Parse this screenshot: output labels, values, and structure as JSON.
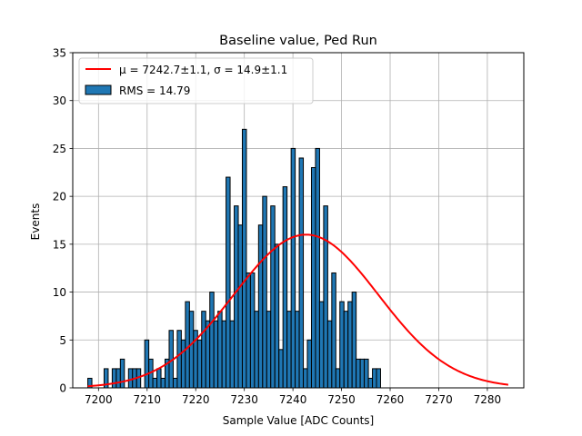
{
  "chart_data": {
    "type": "bar",
    "title": "Baseline value, Ped Run",
    "xlabel": "Sample Value [ADC Counts]",
    "ylabel": "Events",
    "xlim": [
      7194.7,
      7287.5
    ],
    "ylim": [
      0,
      35
    ],
    "xticks": [
      7200,
      7210,
      7220,
      7230,
      7240,
      7250,
      7260,
      7270,
      7280
    ],
    "yticks": [
      0,
      5,
      10,
      15,
      20,
      25,
      30,
      35
    ],
    "grid": true,
    "bin_width": 0.8366,
    "bins_left": [
      7197.8,
      7198.64,
      7199.47,
      7200.31,
      7201.15,
      7201.98,
      7202.82,
      7203.66,
      7204.49,
      7205.33,
      7206.17,
      7207.0,
      7207.84,
      7208.68,
      7209.51,
      7210.35,
      7211.18,
      7212.02,
      7212.86,
      7213.69,
      7214.53,
      7215.37,
      7216.2,
      7217.04,
      7217.88,
      7218.71,
      7219.55,
      7220.39,
      7221.22,
      7222.06,
      7222.9,
      7223.73,
      7224.57,
      7225.41,
      7226.24,
      7227.08,
      7227.92,
      7228.75,
      7229.59,
      7230.42,
      7231.26,
      7232.1,
      7232.93,
      7233.77,
      7234.61,
      7235.44,
      7236.28,
      7237.12,
      7237.95,
      7238.79,
      7239.63,
      7240.46,
      7241.3,
      7242.14,
      7242.97,
      7243.81,
      7244.65,
      7245.48,
      7246.32,
      7247.16,
      7247.99,
      7248.83,
      7249.66,
      7250.5,
      7251.34,
      7252.17,
      7253.01,
      7253.85,
      7254.68,
      7255.52,
      7256.36,
      7257.19,
      7258.03,
      7258.87,
      7259.7,
      7260.54,
      7261.38,
      7262.21,
      7263.05,
      7263.89,
      7264.72,
      7265.56,
      7266.4,
      7267.23,
      7268.07,
      7268.91,
      7269.74,
      7270.58,
      7271.41,
      7272.25,
      7273.09,
      7273.92,
      7274.76,
      7275.6,
      7276.43,
      7277.27,
      7278.11,
      7278.94,
      7279.78,
      7280.62
    ],
    "values": [
      1,
      0,
      0,
      0,
      2,
      0,
      2,
      2,
      3,
      0,
      2,
      2,
      2,
      0,
      5,
      3,
      1,
      2,
      1,
      3,
      6,
      1,
      6,
      5,
      9,
      8,
      6,
      5,
      8,
      7,
      10,
      7,
      8,
      7,
      22,
      7,
      19,
      17,
      27,
      12,
      12,
      8,
      17,
      20,
      8,
      19,
      15,
      4,
      21,
      8,
      25,
      8,
      24,
      2,
      5,
      23,
      25,
      9,
      19,
      7,
      12,
      2,
      9,
      8,
      9,
      10,
      3,
      3,
      3,
      1,
      2,
      2,
      0,
      0,
      0,
      0,
      0,
      0,
      0,
      0,
      0,
      0,
      0,
      0,
      0,
      0,
      0,
      0,
      0,
      0,
      0,
      0,
      0,
      0,
      0,
      0,
      0,
      0,
      0,
      0
    ],
    "series": [
      {
        "name": "RMS = 14.79",
        "kind": "histogram",
        "color": "#1f77b4",
        "edgecolor": "#000000"
      },
      {
        "name": "μ = 7242.7±1.1, σ = 14.9±1.1",
        "kind": "gaussian-fit",
        "color": "#ff0000",
        "mu": 7242.7,
        "sigma": 14.9,
        "amplitude": 16.0,
        "x_range": [
          7197.8,
          7284.3
        ]
      }
    ],
    "legend": {
      "placement": "upper-left",
      "entries": [
        "μ = 7242.7±1.1, σ = 14.9±1.1",
        "RMS = 14.79"
      ]
    }
  }
}
